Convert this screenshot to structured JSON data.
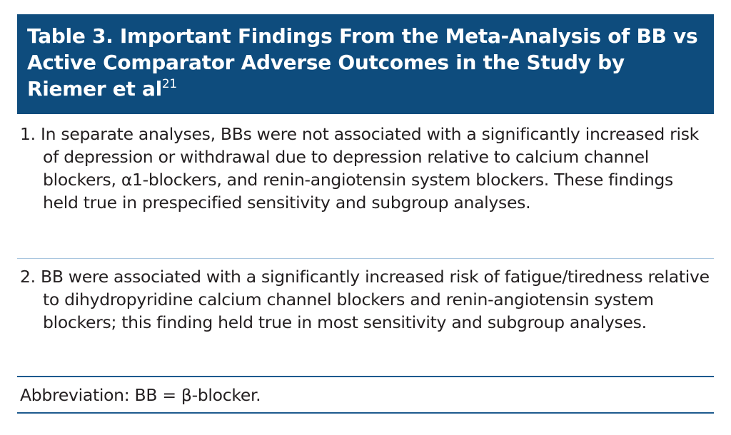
{
  "table": {
    "title": "Table 3. Important Findings From the Meta-Analysis of BB vs Active Comparator Adverse Outcomes in the Study by Riemer et al",
    "title_ref": "21",
    "findings": [
      "1. In separate analyses, BBs were not associated with a significantly increased risk of depression or withdrawal due to depression relative to calcium channel blockers, α1-blockers, and renin-angiotensin system blockers. These findings held true in prespecified sensitivity and subgroup analyses.",
      "2. BB were associated with a significantly increased risk of fatigue/tiredness relative to dihydropyridine calcium channel blockers and renin-angiotensin system blockers; this finding held true in most sensitivity and subgroup analyses."
    ],
    "footnote": "Abbreviation: BB = β-blocker."
  },
  "colors": {
    "header_bg": "#0e4c7d",
    "rule_dark": "#1d5a8e",
    "rule_light": "#a9c6df"
  }
}
